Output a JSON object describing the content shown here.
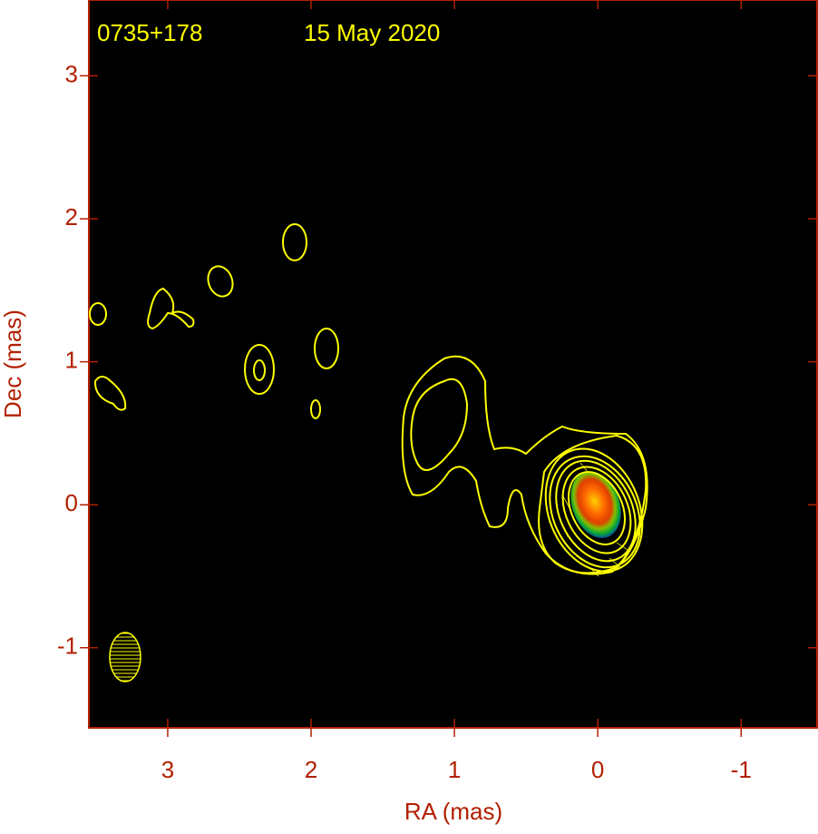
{
  "chart_data": {
    "type": "image",
    "source": "0735+178",
    "date": "15 May 2020",
    "xlabel": "RA (mas)",
    "ylabel": "Dec (mas)",
    "xlim": [
      3.55,
      -1.53
    ],
    "ylim": [
      -1.56,
      3.53
    ],
    "xticks": [
      3,
      2,
      1,
      0,
      -1
    ],
    "yticks": [
      3,
      2,
      1,
      0,
      -1
    ]
  }
}
